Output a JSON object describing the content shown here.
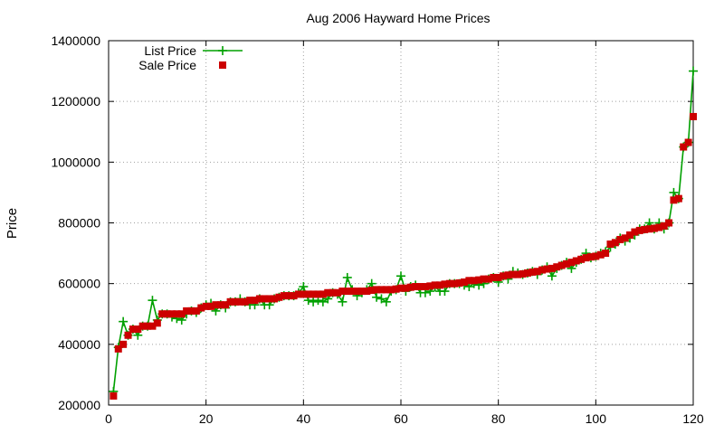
{
  "chart_data": {
    "type": "line",
    "title": "Aug 2006 Hayward Home Prices",
    "xlabel": "",
    "ylabel": "Price",
    "xlim": [
      0,
      120
    ],
    "ylim": [
      200000,
      1400000
    ],
    "x_ticks": [
      "0",
      "20",
      "40",
      "60",
      "80",
      "100",
      "120"
    ],
    "y_ticks": [
      "200000",
      "400000",
      "600000",
      "800000",
      "1000000",
      "1200000",
      "1400000"
    ],
    "grid": true,
    "legend_position": "top-left",
    "x": [
      1,
      2,
      3,
      4,
      5,
      6,
      7,
      8,
      9,
      10,
      11,
      12,
      13,
      14,
      15,
      16,
      17,
      18,
      19,
      20,
      21,
      22,
      23,
      24,
      25,
      26,
      27,
      28,
      29,
      30,
      31,
      32,
      33,
      34,
      35,
      36,
      37,
      38,
      39,
      40,
      41,
      42,
      43,
      44,
      45,
      46,
      47,
      48,
      49,
      50,
      51,
      52,
      53,
      54,
      55,
      56,
      57,
      58,
      59,
      60,
      61,
      62,
      63,
      64,
      65,
      66,
      67,
      68,
      69,
      70,
      71,
      72,
      73,
      74,
      75,
      76,
      77,
      78,
      79,
      80,
      81,
      82,
      83,
      84,
      85,
      86,
      87,
      88,
      89,
      90,
      91,
      92,
      93,
      94,
      95,
      96,
      97,
      98,
      99,
      100,
      101,
      102,
      103,
      104,
      105,
      106,
      107,
      108,
      109,
      110,
      111,
      112,
      113,
      114,
      115,
      116,
      117,
      118,
      119,
      120
    ],
    "series": [
      {
        "name": "List Price",
        "color": "#00a000",
        "marker": "plus",
        "values": [
          245000,
          390000,
          475000,
          430000,
          450000,
          430000,
          460000,
          460000,
          545000,
          480000,
          500000,
          500000,
          490000,
          485000,
          480000,
          500000,
          510000,
          505000,
          520000,
          530000,
          535000,
          510000,
          530000,
          520000,
          540000,
          540000,
          550000,
          540000,
          530000,
          530000,
          550000,
          530000,
          530000,
          550000,
          555000,
          560000,
          560000,
          560000,
          570000,
          590000,
          545000,
          540000,
          545000,
          540000,
          550000,
          570000,
          565000,
          540000,
          620000,
          580000,
          560000,
          570000,
          580000,
          600000,
          555000,
          550000,
          540000,
          575000,
          580000,
          625000,
          575000,
          590000,
          595000,
          570000,
          570000,
          575000,
          590000,
          575000,
          575000,
          600000,
          600000,
          600000,
          595000,
          590000,
          600000,
          595000,
          600000,
          615000,
          620000,
          605000,
          625000,
          615000,
          640000,
          635000,
          630000,
          635000,
          640000,
          630000,
          645000,
          655000,
          625000,
          650000,
          660000,
          670000,
          650000,
          670000,
          680000,
          700000,
          685000,
          690000,
          700000,
          705000,
          720000,
          730000,
          750000,
          740000,
          750000,
          760000,
          780000,
          780000,
          800000,
          780000,
          800000,
          780000,
          800000,
          900000,
          880000,
          1050000,
          1065000,
          1300000
        ]
      },
      {
        "name": "Sale Price",
        "color": "#cc0000",
        "marker": "square",
        "values": [
          230000,
          385000,
          400000,
          430000,
          450000,
          450000,
          460000,
          460000,
          460000,
          470000,
          500000,
          500000,
          500000,
          500000,
          500000,
          510000,
          510000,
          510000,
          520000,
          525000,
          525000,
          530000,
          530000,
          530000,
          540000,
          540000,
          540000,
          540000,
          545000,
          545000,
          550000,
          550000,
          550000,
          550000,
          555000,
          560000,
          560000,
          560000,
          565000,
          565000,
          565000,
          565000,
          565000,
          565000,
          570000,
          570000,
          570000,
          575000,
          575000,
          575000,
          575000,
          575000,
          575000,
          578000,
          580000,
          580000,
          580000,
          580000,
          582000,
          585000,
          585000,
          588000,
          590000,
          590000,
          590000,
          592000,
          595000,
          595000,
          598000,
          600000,
          600000,
          602000,
          605000,
          610000,
          610000,
          612000,
          615000,
          615000,
          620000,
          620000,
          625000,
          628000,
          630000,
          630000,
          632000,
          635000,
          638000,
          640000,
          645000,
          648000,
          650000,
          655000,
          660000,
          665000,
          670000,
          675000,
          680000,
          685000,
          688000,
          690000,
          695000,
          700000,
          730000,
          735000,
          745000,
          750000,
          760000,
          770000,
          775000,
          778000,
          780000,
          782000,
          785000,
          790000,
          800000,
          875000,
          880000,
          1050000,
          1065000,
          1150000
        ]
      }
    ]
  }
}
